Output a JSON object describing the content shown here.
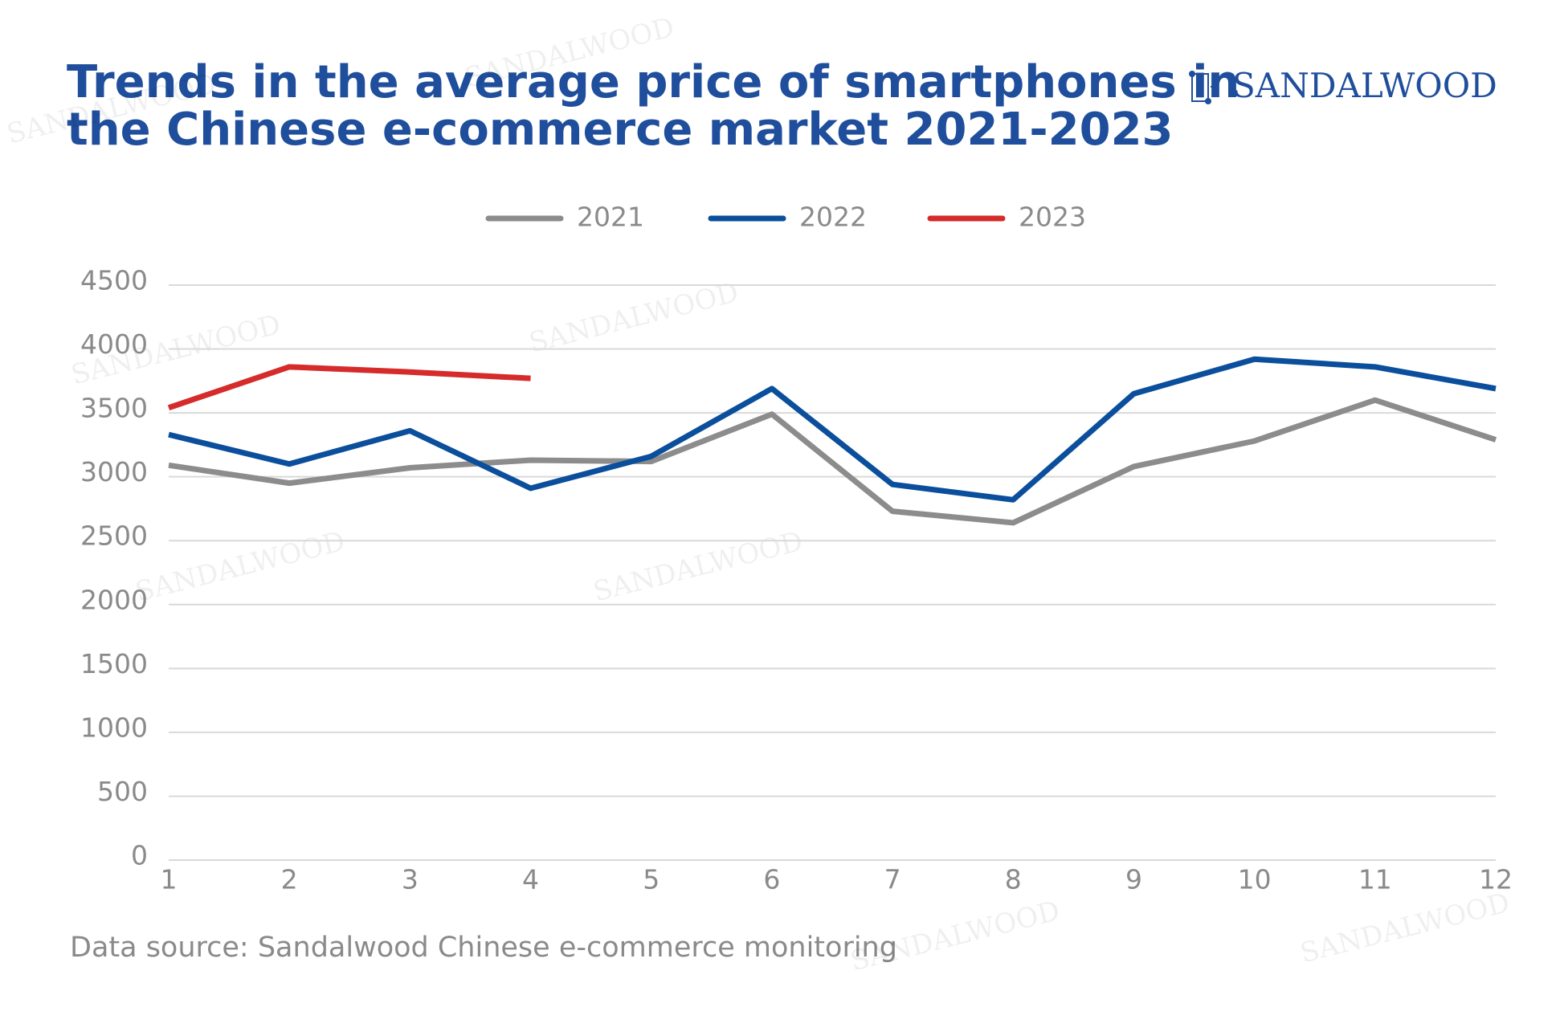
{
  "chart_data": {
    "type": "line",
    "title": [
      "Trends in the average price of smartphones in",
      "the Chinese e-commerce market 2021-2023"
    ],
    "logo": "SANDALWOOD",
    "source": "Data source: Sandalwood Chinese e-commerce monitoring",
    "x": [
      1,
      2,
      3,
      4,
      5,
      6,
      7,
      8,
      9,
      10,
      11,
      12
    ],
    "xlim": [
      1,
      12
    ],
    "xticks": [
      1,
      2,
      3,
      4,
      5,
      6,
      7,
      8,
      9,
      10,
      11,
      12
    ],
    "ylim": [
      0,
      4500
    ],
    "yticks": [
      0,
      500,
      1000,
      1500,
      2000,
      2500,
      3000,
      3500,
      4000,
      4500
    ],
    "grid": true,
    "legend": "top",
    "series": [
      {
        "name": "2021",
        "color": "#8c8c8c",
        "values": [
          3090,
          2950,
          3070,
          3130,
          3120,
          3490,
          2730,
          2640,
          3080,
          3280,
          3600,
          3290
        ]
      },
      {
        "name": "2022",
        "color": "#0b4f9c",
        "values": [
          3330,
          3100,
          3360,
          2910,
          3160,
          3690,
          2940,
          2820,
          3650,
          3920,
          3860,
          3690
        ]
      },
      {
        "name": "2023",
        "color": "#d52b2b",
        "values": [
          3540,
          3860,
          3820,
          3770,
          null,
          null,
          null,
          null,
          null,
          null,
          null,
          null
        ]
      }
    ]
  }
}
